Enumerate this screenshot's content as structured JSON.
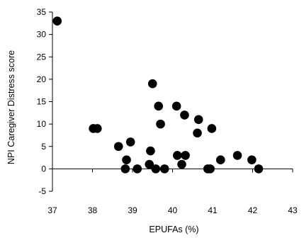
{
  "chart_data": {
    "type": "scatter",
    "xlabel": "EPUFAs (%)",
    "ylabel": "NPI Caregiver Distress score",
    "xlim": [
      37,
      43
    ],
    "ylim": [
      -5,
      35
    ],
    "xticks": [
      37,
      38,
      39,
      40,
      41,
      42,
      43
    ],
    "yticks": [
      -5,
      0,
      5,
      10,
      15,
      20,
      25,
      30,
      35
    ],
    "grid": false,
    "legend": "none",
    "marker_color": "#000000",
    "points": [
      {
        "x": 37.12,
        "y": 33
      },
      {
        "x": 38.02,
        "y": 9
      },
      {
        "x": 38.12,
        "y": 9
      },
      {
        "x": 38.65,
        "y": 5
      },
      {
        "x": 38.82,
        "y": 0
      },
      {
        "x": 38.85,
        "y": 2
      },
      {
        "x": 38.95,
        "y": 6
      },
      {
        "x": 39.12,
        "y": 0
      },
      {
        "x": 39.42,
        "y": 1
      },
      {
        "x": 39.45,
        "y": 4
      },
      {
        "x": 39.5,
        "y": 19
      },
      {
        "x": 39.58,
        "y": 0
      },
      {
        "x": 39.65,
        "y": 14
      },
      {
        "x": 39.7,
        "y": 10
      },
      {
        "x": 39.8,
        "y": 0
      },
      {
        "x": 40.1,
        "y": 14
      },
      {
        "x": 40.12,
        "y": 3
      },
      {
        "x": 40.23,
        "y": 1
      },
      {
        "x": 40.3,
        "y": 12
      },
      {
        "x": 40.32,
        "y": 3
      },
      {
        "x": 40.62,
        "y": 8
      },
      {
        "x": 40.65,
        "y": 11
      },
      {
        "x": 40.88,
        "y": 0
      },
      {
        "x": 40.94,
        "y": 0
      },
      {
        "x": 40.98,
        "y": 9
      },
      {
        "x": 41.2,
        "y": 2
      },
      {
        "x": 41.62,
        "y": 3
      },
      {
        "x": 41.98,
        "y": 2
      },
      {
        "x": 42.15,
        "y": 0
      }
    ]
  }
}
